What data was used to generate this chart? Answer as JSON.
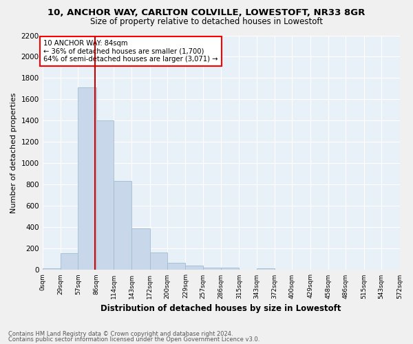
{
  "title": "10, ANCHOR WAY, CARLTON COLVILLE, LOWESTOFT, NR33 8GR",
  "subtitle": "Size of property relative to detached houses in Lowestoft",
  "xlabel": "Distribution of detached houses by size in Lowestoft",
  "ylabel": "Number of detached properties",
  "bar_color": "#c8d8ea",
  "bar_edge_color": "#a0bcd0",
  "background_color": "#e8f0f8",
  "grid_color": "#ffffff",
  "bin_labels": [
    "0sqm",
    "29sqm",
    "57sqm",
    "86sqm",
    "114sqm",
    "143sqm",
    "172sqm",
    "200sqm",
    "229sqm",
    "257sqm",
    "286sqm",
    "315sqm",
    "343sqm",
    "372sqm",
    "400sqm",
    "429sqm",
    "458sqm",
    "486sqm",
    "515sqm",
    "543sqm",
    "572sqm"
  ],
  "bar_heights": [
    15,
    155,
    1710,
    1400,
    835,
    390,
    165,
    70,
    40,
    20,
    20,
    0,
    15,
    0,
    0,
    0,
    0,
    0,
    0,
    0
  ],
  "bin_edges": [
    0,
    29,
    57,
    86,
    114,
    143,
    172,
    200,
    229,
    257,
    286,
    315,
    343,
    372,
    400,
    429,
    458,
    486,
    515,
    543,
    572
  ],
  "red_line_x": 84,
  "ylim": [
    0,
    2200
  ],
  "yticks": [
    0,
    200,
    400,
    600,
    800,
    1000,
    1200,
    1400,
    1600,
    1800,
    2000,
    2200
  ],
  "annotation_text": "10 ANCHOR WAY: 84sqm\n← 36% of detached houses are smaller (1,700)\n64% of semi-detached houses are larger (3,071) →",
  "footer_line1": "Contains HM Land Registry data © Crown copyright and database right 2024.",
  "footer_line2": "Contains public sector information licensed under the Open Government Licence v3.0."
}
